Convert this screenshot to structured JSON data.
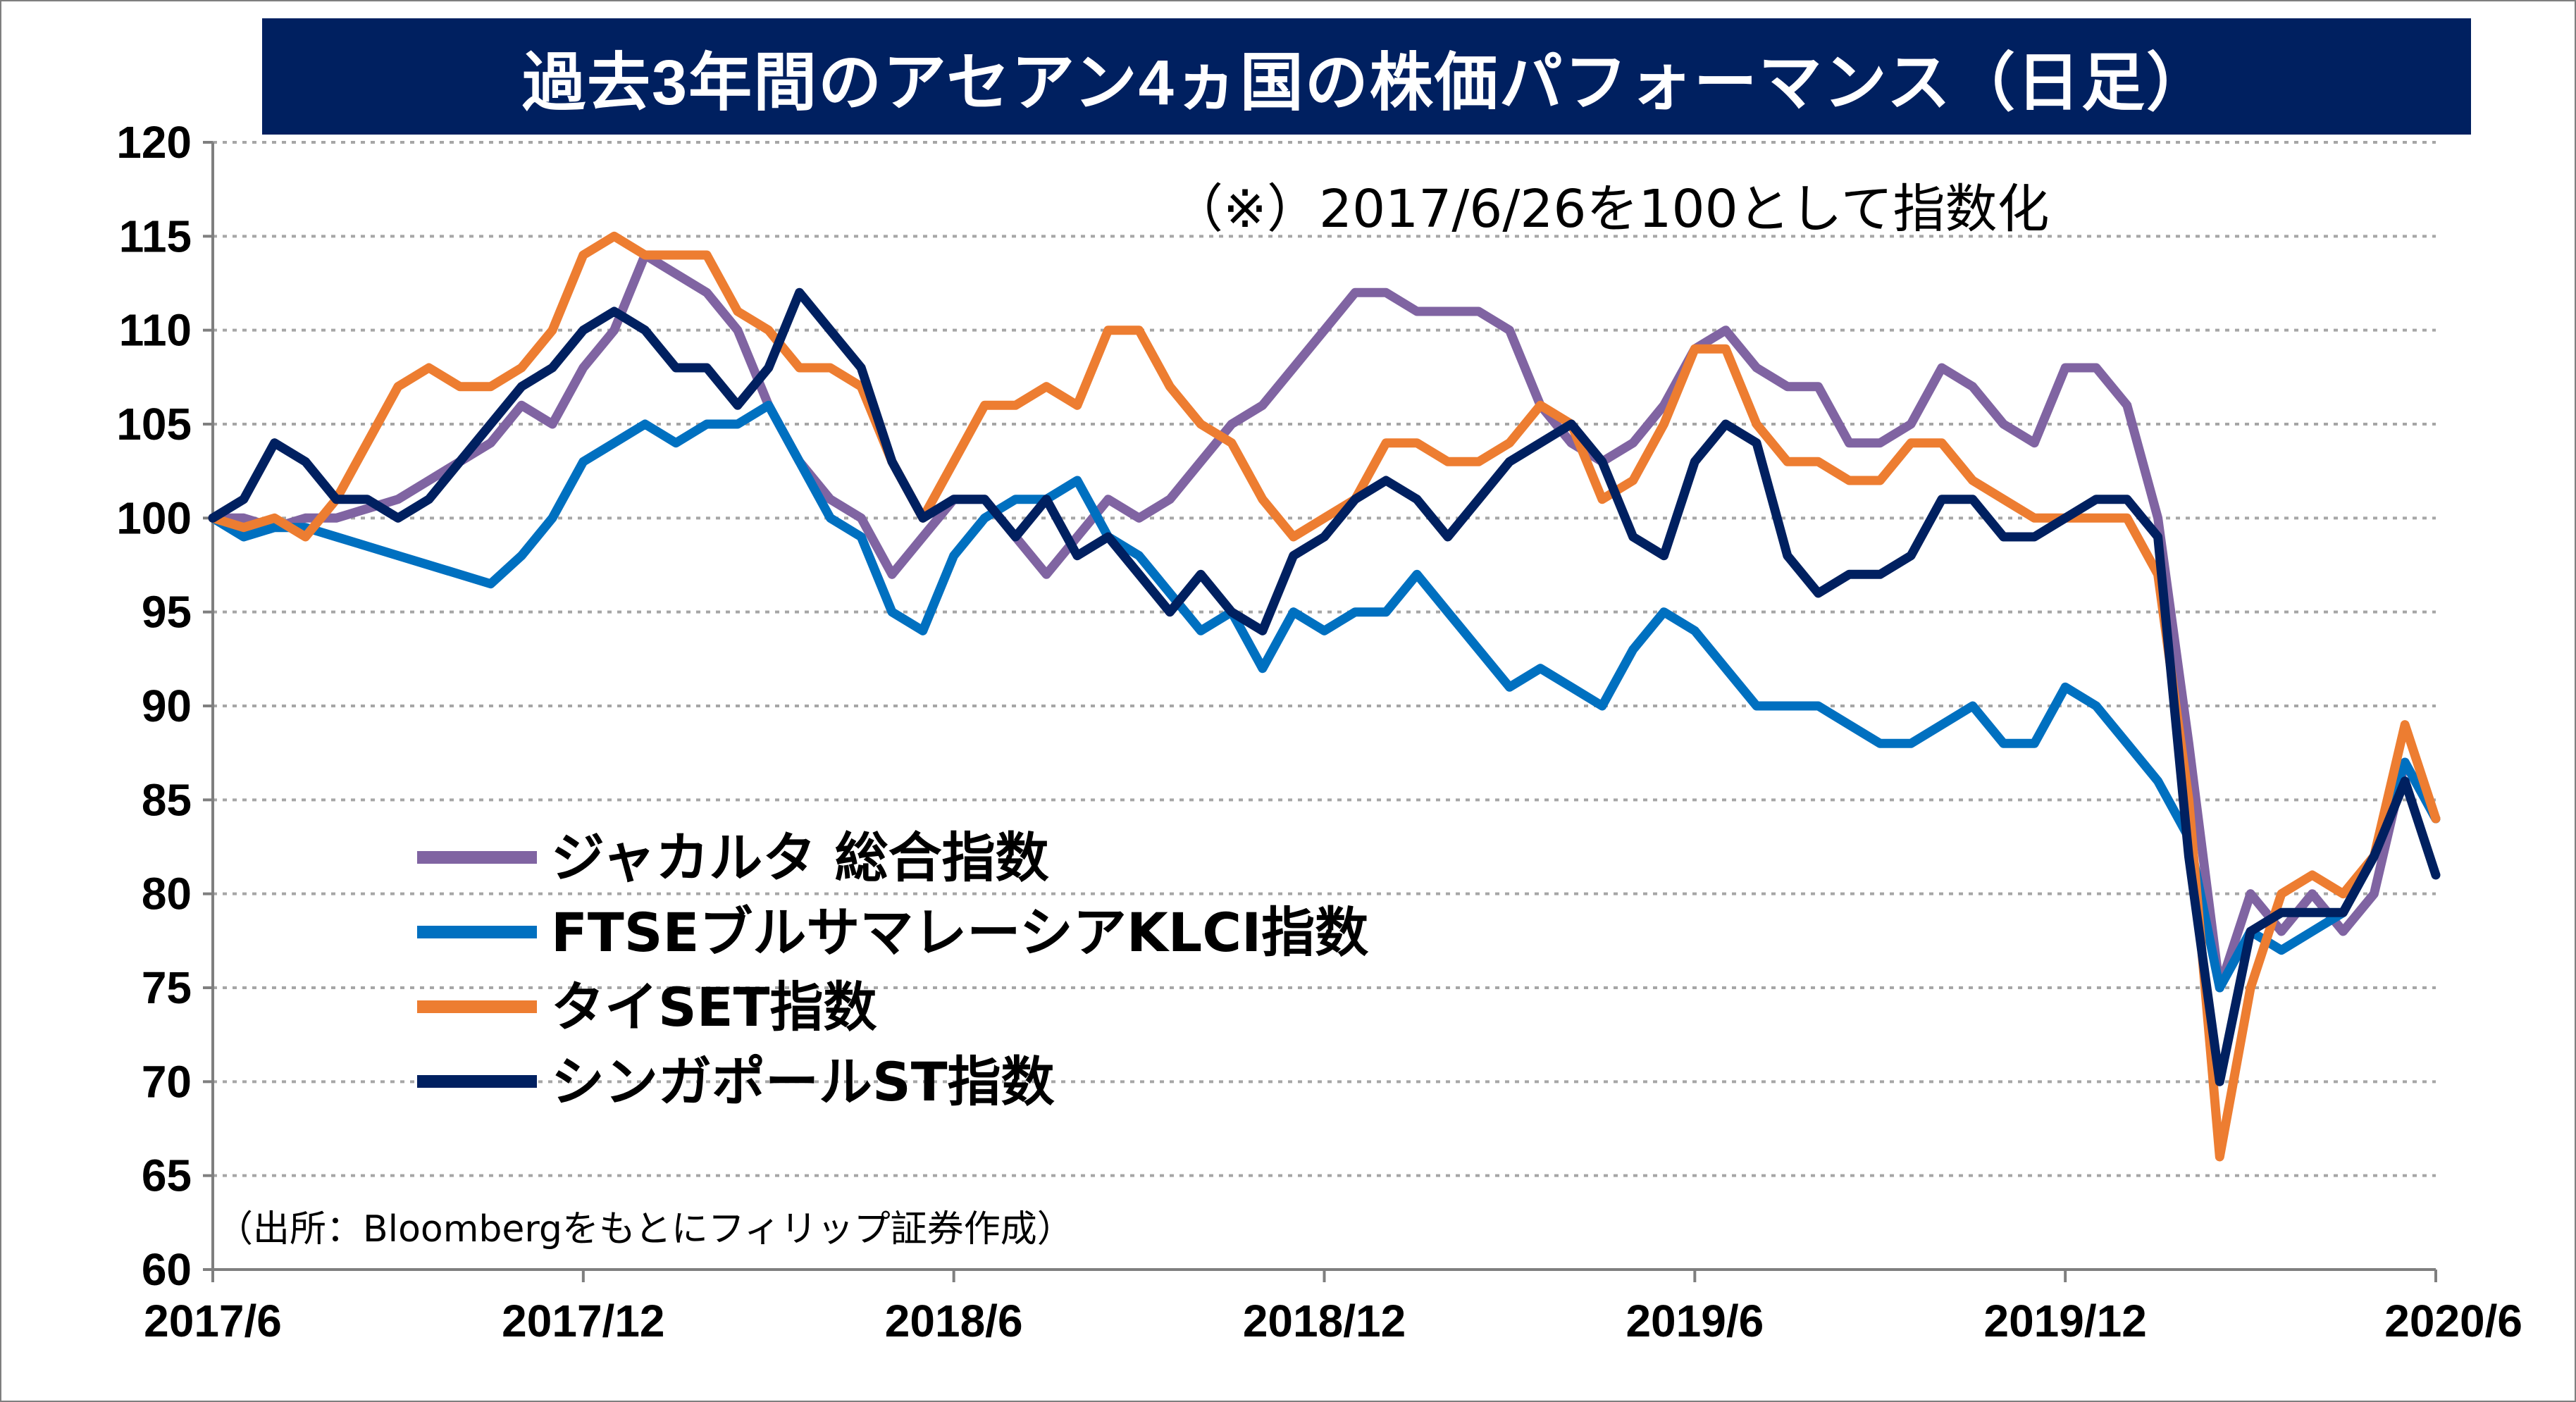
{
  "chart_data": {
    "type": "line",
    "title": "過去3年間のアセアン4ヵ国の株価パフォーマンス（日足）",
    "subtitle": "（※）2017/6/26を100として指数化",
    "source_note": "（出所：Bloombergをもとにフィリップ証券作成）",
    "xlabel": "",
    "ylabel": "",
    "ylim": [
      60,
      120
    ],
    "y_ticks": [
      "120",
      "115",
      "110",
      "105",
      "100",
      "95",
      "90",
      "85",
      "80",
      "75",
      "70",
      "65",
      "60"
    ],
    "x_tick_labels": [
      "2017/6",
      "2017/12",
      "2018/6",
      "2018/12",
      "2019/6",
      "2019/12",
      "2020/6"
    ],
    "x_tick_months": [
      0,
      6,
      12,
      18,
      24,
      30,
      36
    ],
    "x_range_months": [
      0,
      36
    ],
    "grid": "horizontal-dotted",
    "legend_position": "left-lower-inside",
    "colors": {
      "title_bg": "#002060",
      "title_text": "#ffffff",
      "grid": "#a6a6a6",
      "axis": "#7f7f7f"
    },
    "series": [
      {
        "name": "ジャカルタ 総合指数",
        "color": "#8064a2",
        "x": [
          0,
          0.5,
          1,
          1.5,
          2,
          2.5,
          3,
          3.5,
          4,
          4.5,
          5,
          5.5,
          6,
          6.5,
          7,
          7.5,
          8,
          8.5,
          9,
          9.5,
          10,
          10.5,
          11,
          11.5,
          12,
          12.5,
          13,
          13.5,
          14,
          14.5,
          15,
          15.5,
          16,
          16.5,
          17,
          17.5,
          18,
          18.5,
          19,
          19.5,
          20,
          20.5,
          21,
          21.5,
          22,
          22.5,
          23,
          23.5,
          24,
          24.5,
          25,
          25.5,
          26,
          26.5,
          27,
          27.5,
          28,
          28.5,
          29,
          29.5,
          30,
          30.5,
          31,
          31.5,
          32,
          32.5,
          33,
          33.5,
          34,
          34.5,
          35,
          35.5,
          36
        ],
        "values": [
          100,
          100,
          99.5,
          100,
          100,
          100.5,
          101,
          102,
          103,
          104,
          106,
          105,
          108,
          110,
          114,
          113,
          112,
          110,
          106,
          103,
          101,
          100,
          97,
          99,
          101,
          101,
          99,
          97,
          99,
          101,
          100,
          101,
          103,
          105,
          106,
          108,
          110,
          112,
          112,
          111,
          111,
          111,
          110,
          106,
          104,
          103,
          104,
          106,
          109,
          110,
          108,
          107,
          107,
          104,
          104,
          105,
          108,
          107,
          105,
          104,
          108,
          108,
          106,
          100,
          88,
          75,
          80,
          78,
          80,
          78,
          80,
          87,
          84
        ]
      },
      {
        "name": "FTSEブルサマレーシアKLCI指数",
        "color": "#0070c0",
        "x": [
          0,
          0.5,
          1,
          1.5,
          2,
          2.5,
          3,
          3.5,
          4,
          4.5,
          5,
          5.5,
          6,
          6.5,
          7,
          7.5,
          8,
          8.5,
          9,
          9.5,
          10,
          10.5,
          11,
          11.5,
          12,
          12.5,
          13,
          13.5,
          14,
          14.5,
          15,
          15.5,
          16,
          16.5,
          17,
          17.5,
          18,
          18.5,
          19,
          19.5,
          20,
          20.5,
          21,
          21.5,
          22,
          22.5,
          23,
          23.5,
          24,
          24.5,
          25,
          25.5,
          26,
          26.5,
          27,
          27.5,
          28,
          28.5,
          29,
          29.5,
          30,
          30.5,
          31,
          31.5,
          32,
          32.5,
          33,
          33.5,
          34,
          34.5,
          35,
          35.5,
          36
        ],
        "values": [
          100,
          99,
          99.5,
          99.5,
          99,
          98.5,
          98,
          97.5,
          97,
          96.5,
          98,
          100,
          103,
          104,
          105,
          104,
          105,
          105,
          106,
          103,
          100,
          99,
          95,
          94,
          98,
          100,
          101,
          101,
          102,
          99,
          98,
          96,
          94,
          95,
          92,
          95,
          94,
          95,
          95,
          97,
          95,
          93,
          91,
          92,
          91,
          90,
          93,
          95,
          94,
          92,
          90,
          90,
          90,
          89,
          88,
          88,
          89,
          90,
          88,
          88,
          91,
          90,
          88,
          86,
          83,
          75,
          78,
          77,
          78,
          79,
          82,
          87,
          84
        ]
      },
      {
        "name": "タイSET指数",
        "color": "#ed7d31",
        "x": [
          0,
          0.5,
          1,
          1.5,
          2,
          2.5,
          3,
          3.5,
          4,
          4.5,
          5,
          5.5,
          6,
          6.5,
          7,
          7.5,
          8,
          8.5,
          9,
          9.5,
          10,
          10.5,
          11,
          11.5,
          12,
          12.5,
          13,
          13.5,
          14,
          14.5,
          15,
          15.5,
          16,
          16.5,
          17,
          17.5,
          18,
          18.5,
          19,
          19.5,
          20,
          20.5,
          21,
          21.5,
          22,
          22.5,
          23,
          23.5,
          24,
          24.5,
          25,
          25.5,
          26,
          26.5,
          27,
          27.5,
          28,
          28.5,
          29,
          29.5,
          30,
          30.5,
          31,
          31.5,
          32,
          32.5,
          33,
          33.5,
          34,
          34.5,
          35,
          35.5,
          36
        ],
        "values": [
          100,
          99.5,
          100,
          99,
          101,
          104,
          107,
          108,
          107,
          107,
          108,
          110,
          114,
          115,
          114,
          114,
          114,
          111,
          110,
          108,
          108,
          107,
          103,
          100,
          103,
          106,
          106,
          107,
          106,
          110,
          110,
          107,
          105,
          104,
          101,
          99,
          100,
          101,
          104,
          104,
          103,
          103,
          104,
          106,
          105,
          101,
          102,
          105,
          109,
          109,
          105,
          103,
          103,
          102,
          102,
          104,
          104,
          102,
          101,
          100,
          100,
          100,
          100,
          97,
          85,
          66,
          75,
          80,
          81,
          80,
          82,
          89,
          84
        ]
      },
      {
        "name": "シンガポールST指数",
        "color": "#002060",
        "x": [
          0,
          0.5,
          1,
          1.5,
          2,
          2.5,
          3,
          3.5,
          4,
          4.5,
          5,
          5.5,
          6,
          6.5,
          7,
          7.5,
          8,
          8.5,
          9,
          9.5,
          10,
          10.5,
          11,
          11.5,
          12,
          12.5,
          13,
          13.5,
          14,
          14.5,
          15,
          15.5,
          16,
          16.5,
          17,
          17.5,
          18,
          18.5,
          19,
          19.5,
          20,
          20.5,
          21,
          21.5,
          22,
          22.5,
          23,
          23.5,
          24,
          24.5,
          25,
          25.5,
          26,
          26.5,
          27,
          27.5,
          28,
          28.5,
          29,
          29.5,
          30,
          30.5,
          31,
          31.5,
          32,
          32.5,
          33,
          33.5,
          34,
          34.5,
          35,
          35.5,
          36
        ],
        "values": [
          100,
          101,
          104,
          103,
          101,
          101,
          100,
          101,
          103,
          105,
          107,
          108,
          110,
          111,
          110,
          108,
          108,
          106,
          108,
          112,
          110,
          108,
          103,
          100,
          101,
          101,
          99,
          101,
          98,
          99,
          97,
          95,
          97,
          95,
          94,
          98,
          99,
          101,
          102,
          101,
          99,
          101,
          103,
          104,
          105,
          103,
          99,
          98,
          103,
          105,
          104,
          98,
          96,
          97,
          97,
          98,
          101,
          101,
          99,
          99,
          100,
          101,
          101,
          99,
          82,
          70,
          78,
          79,
          79,
          79,
          82,
          86,
          81
        ]
      }
    ]
  }
}
